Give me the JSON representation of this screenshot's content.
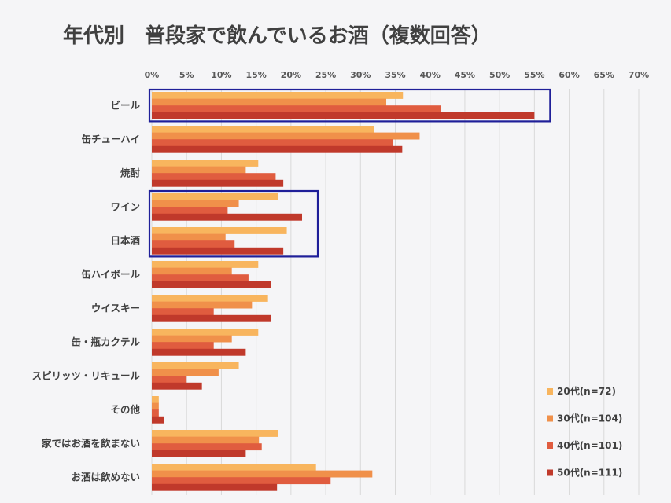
{
  "chart_data": {
    "type": "bar",
    "orientation": "horizontal",
    "title": "年代別　普段家で飲んでいるお酒（複数回答）",
    "xlabel": "",
    "ylabel": "",
    "xlim": [
      0,
      70
    ],
    "x_ticks": [
      "0%",
      "5%",
      "10%",
      "15%",
      "20%",
      "25%",
      "30%",
      "35%",
      "40%",
      "45%",
      "50%",
      "55%",
      "60%",
      "65%",
      "70%"
    ],
    "grid": true,
    "legend_position": "bottom-right",
    "categories": [
      "ビール",
      "缶チューハイ",
      "焼酎",
      "ワイン",
      "日本酒",
      "缶ハイボール",
      "ウイスキー",
      "缶・瓶カクテル",
      "スピリッツ・リキュール",
      "その他",
      "家ではお酒を飲まない",
      "お酒は飲めない"
    ],
    "series": [
      {
        "name": "20代(n=72)",
        "color": "#f8b55e",
        "values": [
          36.1,
          31.9,
          15.3,
          18.1,
          19.4,
          15.3,
          16.7,
          15.3,
          12.5,
          1.0,
          18.1,
          23.6
        ]
      },
      {
        "name": "30代(n=104)",
        "color": "#f0904a",
        "values": [
          33.7,
          38.5,
          13.5,
          12.5,
          10.6,
          11.5,
          14.4,
          11.5,
          9.6,
          1.0,
          15.4,
          31.7
        ]
      },
      {
        "name": "40代(n=101)",
        "color": "#e05c3f",
        "values": [
          41.6,
          34.7,
          17.8,
          10.9,
          11.9,
          13.9,
          8.9,
          8.9,
          5.0,
          1.0,
          15.8,
          25.7
        ]
      },
      {
        "name": "50代(n=111)",
        "color": "#c0392b",
        "values": [
          55.0,
          36.0,
          18.9,
          21.6,
          18.9,
          17.1,
          17.1,
          13.5,
          7.2,
          1.8,
          13.5,
          18.0
        ]
      }
    ],
    "highlight_groups": [
      {
        "categories": [
          "ビール"
        ],
        "color": "#1f1f99"
      },
      {
        "categories": [
          "ワイン",
          "日本酒"
        ],
        "color": "#1f1f99"
      }
    ]
  }
}
